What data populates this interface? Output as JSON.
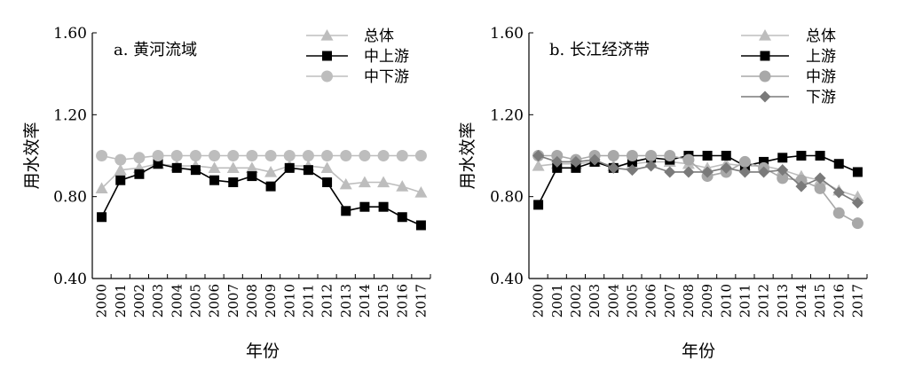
{
  "chart_data": [
    {
      "type": "line",
      "panel_label": "a. 黄河流域",
      "ylabel": "用水效率",
      "xlabel": "年份",
      "ylim": [
        0.4,
        1.6
      ],
      "yticks": [
        "0.40",
        "0.80",
        "1.20",
        "1.60"
      ],
      "x": [
        "2000",
        "2001",
        "2002",
        "2003",
        "2004",
        "2005",
        "2006",
        "2007",
        "2008",
        "2009",
        "2010",
        "2011",
        "2012",
        "2013",
        "2014",
        "2015",
        "2016",
        "2017"
      ],
      "legend_position": "top-right",
      "series": [
        {
          "name": "总体",
          "marker": "triangle",
          "color": "#bdbdbd",
          "values": [
            0.84,
            0.93,
            0.94,
            0.96,
            0.95,
            0.95,
            0.94,
            0.94,
            0.94,
            0.92,
            0.95,
            0.95,
            0.94,
            0.86,
            0.87,
            0.87,
            0.85,
            0.82
          ]
        },
        {
          "name": "中上游",
          "marker": "square",
          "color": "#000000",
          "values": [
            0.7,
            0.88,
            0.91,
            0.96,
            0.94,
            0.93,
            0.88,
            0.87,
            0.9,
            0.85,
            0.94,
            0.93,
            0.87,
            0.73,
            0.75,
            0.75,
            0.7,
            0.66
          ]
        },
        {
          "name": "中下游",
          "marker": "circle",
          "color": "#bdbdbd",
          "values": [
            1.0,
            0.98,
            0.99,
            1.0,
            1.0,
            1.0,
            1.0,
            1.0,
            1.0,
            1.0,
            1.0,
            1.0,
            1.0,
            1.0,
            1.0,
            1.0,
            1.0,
            1.0
          ]
        }
      ]
    },
    {
      "type": "line",
      "panel_label": "b. 长江经济带",
      "ylabel": "用水效率",
      "xlabel": "年份",
      "ylim": [
        0.4,
        1.6
      ],
      "yticks": [
        "0.40",
        "0.80",
        "1.20",
        "1.60"
      ],
      "x": [
        "2000",
        "2001",
        "2002",
        "2003",
        "2004",
        "2005",
        "2006",
        "2007",
        "2008",
        "2009",
        "2010",
        "2011",
        "2012",
        "2013",
        "2014",
        "2015",
        "2016",
        "2017"
      ],
      "legend_position": "top-right",
      "series": [
        {
          "name": "总体",
          "marker": "triangle",
          "color": "#bdbdbd",
          "values": [
            0.95,
            0.96,
            0.96,
            0.97,
            0.95,
            0.96,
            0.97,
            0.97,
            0.96,
            0.94,
            0.96,
            0.95,
            0.95,
            0.93,
            0.9,
            0.88,
            0.83,
            0.8
          ]
        },
        {
          "name": "上游",
          "marker": "square",
          "color": "#000000",
          "values": [
            0.76,
            0.94,
            0.94,
            0.97,
            0.94,
            0.97,
            0.99,
            0.98,
            1.0,
            1.0,
            1.0,
            0.95,
            0.97,
            0.99,
            1.0,
            1.0,
            0.96,
            0.92
          ]
        },
        {
          "name": "中游",
          "marker": "circle",
          "color": "#a8a8a8",
          "values": [
            1.0,
            1.0,
            0.98,
            1.0,
            1.0,
            1.0,
            1.0,
            1.0,
            0.98,
            0.9,
            0.92,
            0.97,
            0.94,
            0.89,
            0.88,
            0.84,
            0.72,
            0.67
          ]
        },
        {
          "name": "下游",
          "marker": "diamond",
          "color": "#7a7a7a",
          "values": [
            1.0,
            0.97,
            0.97,
            0.98,
            0.94,
            0.93,
            0.95,
            0.92,
            0.92,
            0.92,
            0.94,
            0.92,
            0.92,
            0.93,
            0.85,
            0.89,
            0.82,
            0.77
          ]
        }
      ]
    }
  ]
}
